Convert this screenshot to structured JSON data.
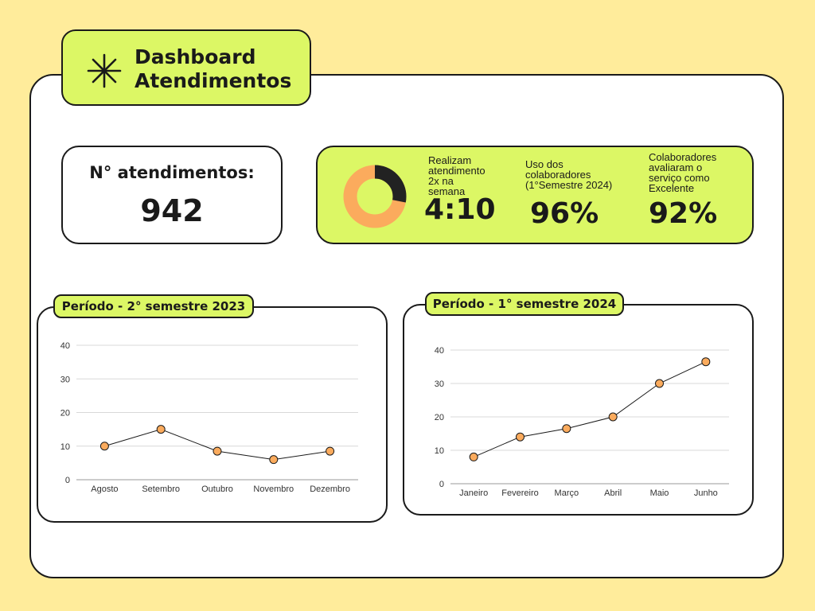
{
  "header": {
    "title_line1": "Dashboard",
    "title_line2": "Atendimentos",
    "icon": "asterisk-icon"
  },
  "count": {
    "label": "N° atendimentos:",
    "value": "942"
  },
  "kpis": {
    "donut": {
      "filled_fraction": 0.28,
      "filled_color": "#222222",
      "rest_color": "#fbab5d"
    },
    "weekly": {
      "line1": "Realizam",
      "line2": "atendimento",
      "line3": "2x na",
      "line4": "semana",
      "value": "4:10"
    },
    "usage": {
      "line1": "Uso dos",
      "line2": "colaboradores",
      "line3": "(1°Semestre 2024)",
      "value": "96%"
    },
    "rating": {
      "line1": "Colaboradores",
      "line2": "avaliaram o",
      "line3": "serviço como",
      "line4": "Excelente",
      "value": "92%"
    }
  },
  "charts": {
    "left_title": "Período - 2° semestre 2023",
    "right_title": "Período - 1° semestre 2024"
  },
  "colors": {
    "accent": "#dcf765",
    "background": "#ffec9b",
    "point": "#fbab5d"
  },
  "chart_data": [
    {
      "type": "line",
      "title": "Período - 2° semestre 2023",
      "categories": [
        "Agosto",
        "Setembro",
        "Outubro",
        "Novembro",
        "Dezembro"
      ],
      "values": [
        10,
        15,
        8.5,
        6,
        8.5
      ],
      "ylim": [
        0,
        40
      ],
      "yticks": [
        0,
        10,
        20,
        30,
        40
      ],
      "grid": true
    },
    {
      "type": "line",
      "title": "Período - 1° semestre 2024",
      "categories": [
        "Janeiro",
        "Fevereiro",
        "Março",
        "Abril",
        "Maio",
        "Junho"
      ],
      "values": [
        8,
        14,
        16.5,
        20,
        30,
        36.5
      ],
      "ylim": [
        0,
        40
      ],
      "yticks": [
        0,
        10,
        20,
        30,
        40
      ],
      "grid": true
    }
  ]
}
